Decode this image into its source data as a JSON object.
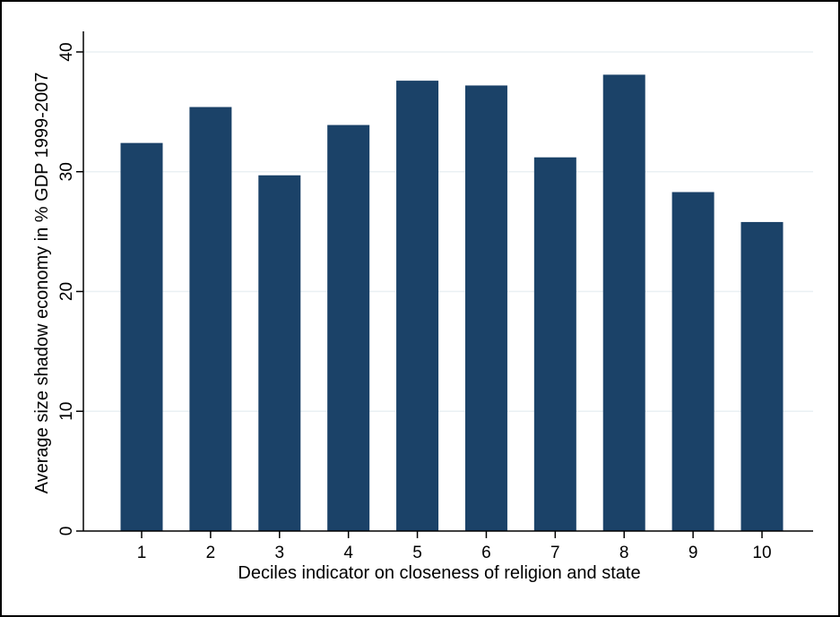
{
  "chart_data": {
    "type": "bar",
    "title": "",
    "xlabel": "Deciles indicator on closeness of religion and state",
    "ylabel": "Average size shadow economy in % GDP 1999-2007",
    "categories": [
      "1",
      "2",
      "3",
      "4",
      "5",
      "6",
      "7",
      "8",
      "9",
      "10"
    ],
    "values": [
      32.4,
      35.4,
      29.7,
      33.9,
      37.6,
      37.2,
      31.2,
      38.1,
      28.3,
      25.8
    ],
    "ylim": [
      0,
      40
    ],
    "yticks": [
      "0",
      "10",
      "20",
      "30",
      "40"
    ],
    "grid": true,
    "legend": "none",
    "bar_color": "#1b4268",
    "grid_color": "#eaf0f3",
    "axis_color": "#000000"
  }
}
